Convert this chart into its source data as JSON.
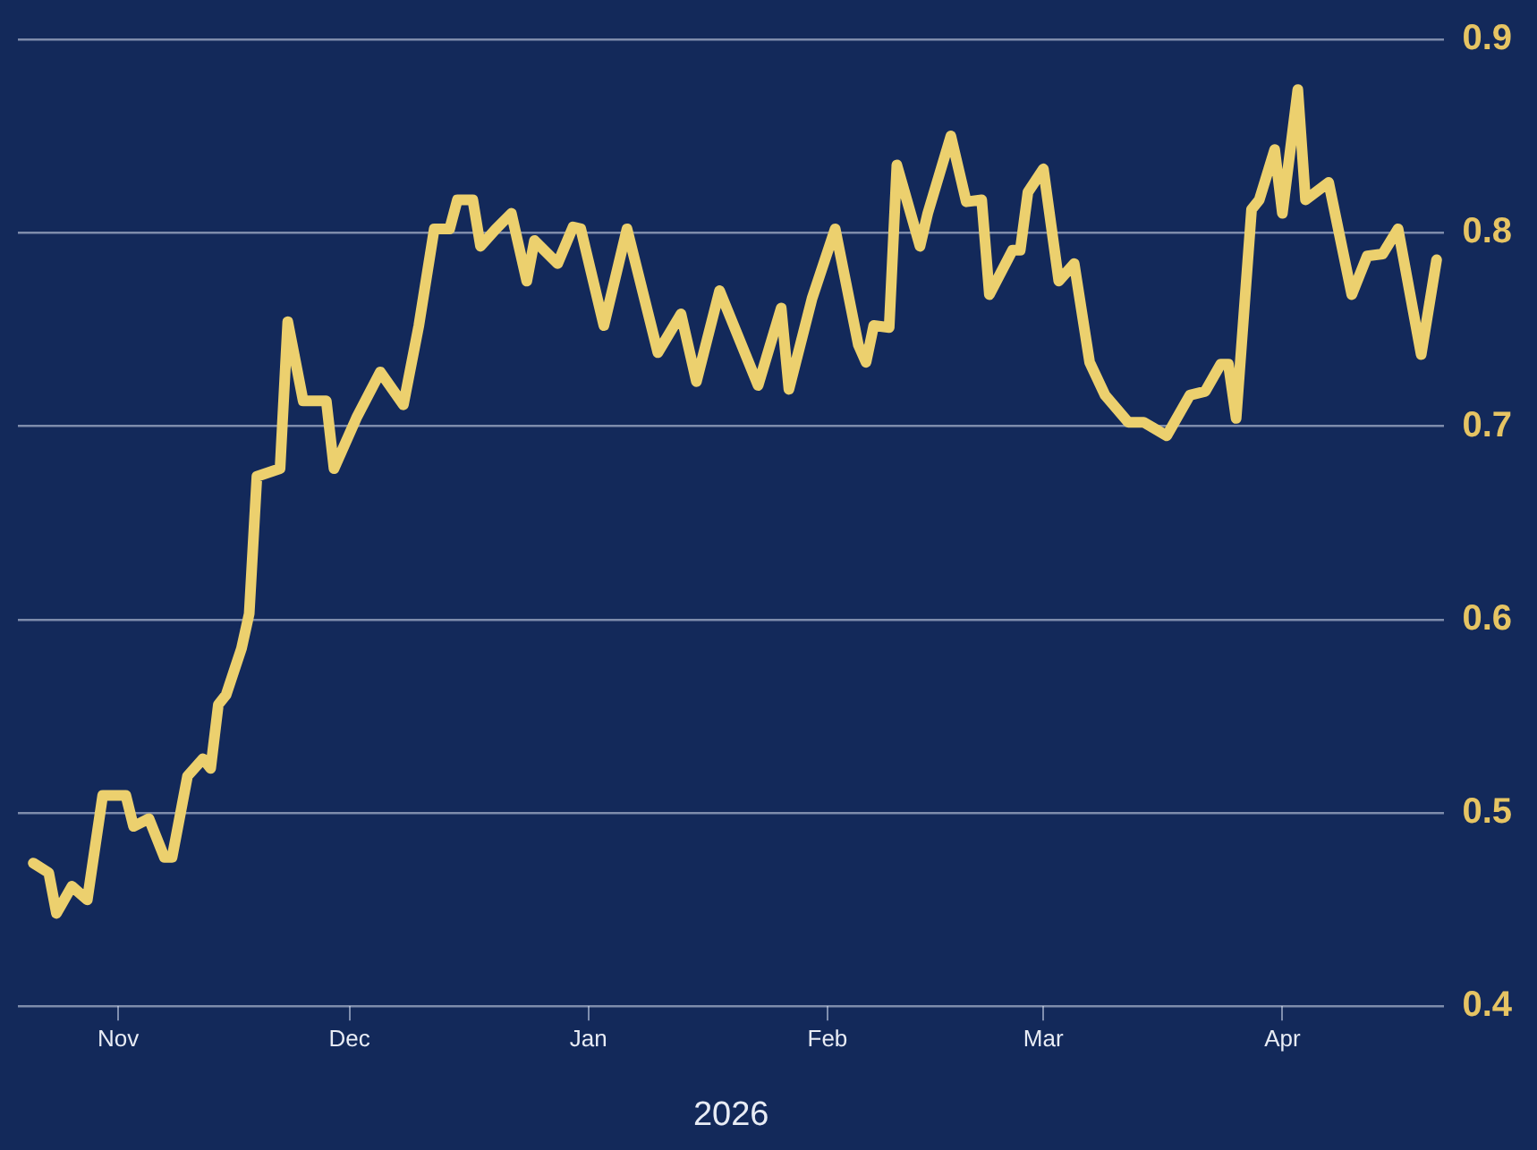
{
  "chart_data": {
    "type": "line",
    "xlabel": "2026",
    "x": [
      "2025-10-21",
      "2025-10-23",
      "2025-10-24",
      "2025-10-26",
      "2025-10-28",
      "2025-10-30",
      "2025-10-31",
      "2025-11-02",
      "2025-11-03",
      "2025-11-05",
      "2025-11-07",
      "2025-11-08",
      "2025-11-10",
      "2025-11-12",
      "2025-11-13",
      "2025-11-14",
      "2025-11-15",
      "2025-11-17",
      "2025-11-18",
      "2025-11-19",
      "2025-11-22",
      "2025-11-23",
      "2025-11-25",
      "2025-11-28",
      "2025-11-29",
      "2025-12-02",
      "2025-12-05",
      "2025-12-08",
      "2025-12-10",
      "2025-12-12",
      "2025-12-14",
      "2025-12-15",
      "2025-12-17",
      "2025-12-18",
      "2025-12-20",
      "2025-12-22",
      "2025-12-24",
      "2025-12-25",
      "2025-12-28",
      "2025-12-30",
      "2025-12-31",
      "2026-01-03",
      "2026-01-06",
      "2026-01-10",
      "2026-01-13",
      "2026-01-15",
      "2026-01-18",
      "2026-01-23",
      "2026-01-26",
      "2026-01-27",
      "2026-01-30",
      "2026-02-02",
      "2026-02-05",
      "2026-02-06",
      "2026-02-07",
      "2026-02-09",
      "2026-02-10",
      "2026-02-13",
      "2026-02-14",
      "2026-02-17",
      "2026-02-19",
      "2026-02-21",
      "2026-02-22",
      "2026-02-25",
      "2026-02-26",
      "2026-02-27",
      "2026-03-01",
      "2026-03-03",
      "2026-03-05",
      "2026-03-07",
      "2026-03-09",
      "2026-03-12",
      "2026-03-14",
      "2026-03-17",
      "2026-03-20",
      "2026-03-22",
      "2026-03-24",
      "2026-03-25",
      "2026-03-26",
      "2026-03-28",
      "2026-03-29",
      "2026-03-31",
      "2026-04-01",
      "2026-04-03",
      "2026-04-04",
      "2026-04-07",
      "2026-04-10",
      "2026-04-12",
      "2026-04-14",
      "2026-04-16",
      "2026-04-19",
      "2026-04-21"
    ],
    "series": [
      {
        "color": "#ecd06e",
        "values": [
          0.474,
          0.469,
          0.448,
          0.462,
          0.455,
          0.509,
          0.509,
          0.509,
          0.493,
          0.497,
          0.477,
          0.477,
          0.519,
          0.528,
          0.523,
          0.556,
          0.561,
          0.585,
          0.603,
          0.674,
          0.678,
          0.754,
          0.713,
          0.713,
          0.678,
          0.705,
          0.728,
          0.711,
          0.752,
          0.802,
          0.802,
          0.817,
          0.817,
          0.793,
          0.802,
          0.81,
          0.775,
          0.796,
          0.784,
          0.803,
          0.802,
          0.752,
          0.802,
          0.738,
          0.758,
          0.723,
          0.77,
          0.721,
          0.761,
          0.719,
          0.766,
          0.802,
          0.742,
          0.733,
          0.752,
          0.751,
          0.835,
          0.793,
          0.81,
          0.85,
          0.816,
          0.817,
          0.768,
          0.791,
          0.791,
          0.821,
          0.833,
          0.775,
          0.784,
          0.733,
          0.716,
          0.702,
          0.702,
          0.695,
          0.716,
          0.718,
          0.732,
          0.732,
          0.704,
          0.812,
          0.817,
          0.843,
          0.81,
          0.874,
          0.817,
          0.826,
          0.768,
          0.788,
          0.789,
          0.802,
          0.737,
          0.786
        ]
      }
    ],
    "xlim": [
      "2025-10-19",
      "2026-04-22"
    ],
    "xticks": [
      {
        "value": "2025-11-01",
        "label": "Nov"
      },
      {
        "value": "2025-12-01",
        "label": "Dec"
      },
      {
        "value": "2026-01-01",
        "label": "Jan"
      },
      {
        "value": "2026-02-01",
        "label": "Feb"
      },
      {
        "value": "2026-03-01",
        "label": "Mar"
      },
      {
        "value": "2026-04-01",
        "label": "Apr"
      }
    ],
    "ylim": [
      0.4,
      0.9
    ],
    "yticks": [
      0.4,
      0.5,
      0.6,
      0.7,
      0.8,
      0.9
    ],
    "grid": "y",
    "legend": false,
    "marker": "none",
    "line_style": "solid"
  }
}
